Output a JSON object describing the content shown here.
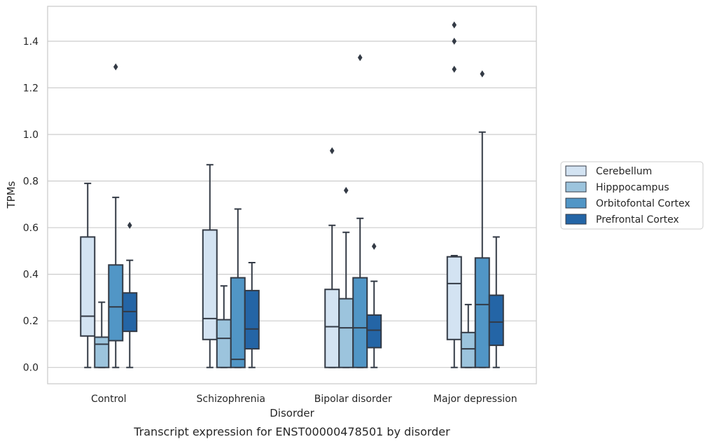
{
  "chart_data": {
    "type": "boxplot",
    "caption": "Transcript expression for ENST00000478501 by disorder",
    "xlabel": "Disorder",
    "ylabel": "TPMs",
    "ylim": [
      -0.07,
      1.55
    ],
    "yticks": [
      0.0,
      0.2,
      0.4,
      0.6,
      0.8,
      1.0,
      1.2,
      1.4
    ],
    "ytick_labels": [
      "0.0",
      "0.2",
      "0.4",
      "0.6",
      "0.8",
      "1.0",
      "1.2",
      "1.4"
    ],
    "grid": "horizontal",
    "legend_position": "outside-right",
    "categories": [
      "Control",
      "Schizophrenia",
      "Bipolar disorder",
      "Major depression"
    ],
    "series": [
      {
        "name": "Cerebellum",
        "color": "#d3e3f2",
        "boxes": [
          {
            "whislo": 0.0,
            "q1": 0.135,
            "med": 0.22,
            "q3": 0.56,
            "whishi": 0.79,
            "fliers": []
          },
          {
            "whislo": 0.0,
            "q1": 0.12,
            "med": 0.21,
            "q3": 0.59,
            "whishi": 0.87,
            "fliers": []
          },
          {
            "whislo": 0.0,
            "q1": 0.0,
            "med": 0.175,
            "q3": 0.335,
            "whishi": 0.61,
            "fliers": [
              0.93
            ]
          },
          {
            "whislo": 0.0,
            "q1": 0.12,
            "med": 0.36,
            "q3": 0.475,
            "whishi": 0.48,
            "fliers": [
              1.28,
              1.4,
              1.47
            ]
          }
        ]
      },
      {
        "name": "Hipppocampus",
        "color": "#9cc4dd",
        "boxes": [
          {
            "whislo": 0.0,
            "q1": 0.0,
            "med": 0.1,
            "q3": 0.13,
            "whishi": 0.28,
            "fliers": []
          },
          {
            "whislo": 0.0,
            "q1": 0.0,
            "med": 0.125,
            "q3": 0.205,
            "whishi": 0.35,
            "fliers": []
          },
          {
            "whislo": 0.0,
            "q1": 0.0,
            "med": 0.17,
            "q3": 0.295,
            "whishi": 0.58,
            "fliers": [
              0.76
            ]
          },
          {
            "whislo": 0.0,
            "q1": 0.0,
            "med": 0.08,
            "q3": 0.15,
            "whishi": 0.27,
            "fliers": []
          }
        ]
      },
      {
        "name": "Orbitofontal Cortex",
        "color": "#5196c6",
        "boxes": [
          {
            "whislo": 0.0,
            "q1": 0.115,
            "med": 0.26,
            "q3": 0.44,
            "whishi": 0.73,
            "fliers": [
              1.29
            ]
          },
          {
            "whislo": 0.0,
            "q1": 0.0,
            "med": 0.035,
            "q3": 0.385,
            "whishi": 0.68,
            "fliers": []
          },
          {
            "whislo": 0.0,
            "q1": 0.0,
            "med": 0.17,
            "q3": 0.385,
            "whishi": 0.64,
            "fliers": [
              1.33
            ]
          },
          {
            "whislo": 0.0,
            "q1": 0.0,
            "med": 0.27,
            "q3": 0.47,
            "whishi": 1.01,
            "fliers": [
              1.26
            ]
          }
        ]
      },
      {
        "name": "Prefrontal Cortex",
        "color": "#2465a6",
        "boxes": [
          {
            "whislo": 0.0,
            "q1": 0.155,
            "med": 0.24,
            "q3": 0.32,
            "whishi": 0.46,
            "fliers": [
              0.61
            ]
          },
          {
            "whislo": 0.0,
            "q1": 0.08,
            "med": 0.165,
            "q3": 0.33,
            "whishi": 0.45,
            "fliers": []
          },
          {
            "whislo": 0.0,
            "q1": 0.085,
            "med": 0.16,
            "q3": 0.225,
            "whishi": 0.37,
            "fliers": [
              0.52
            ]
          },
          {
            "whislo": 0.0,
            "q1": 0.095,
            "med": 0.195,
            "q3": 0.31,
            "whishi": 0.56,
            "fliers": []
          }
        ]
      }
    ]
  }
}
